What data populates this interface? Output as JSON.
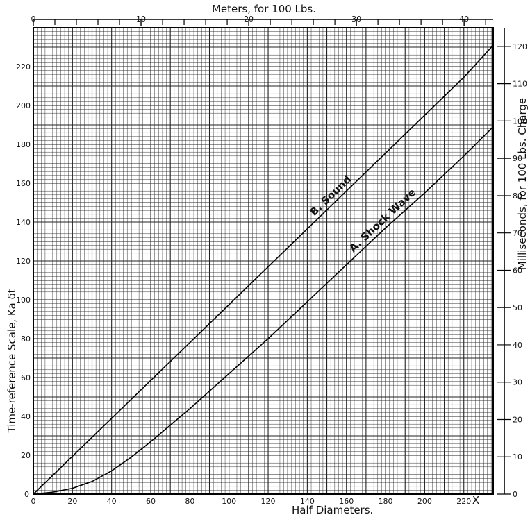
{
  "chart_data": {
    "type": "line",
    "xlabel": "Half Diameters.",
    "x_end_label": "X",
    "ylabel": "Time-reference Scale, Ka δt",
    "top_label": "Meters, for 100 Lbs.",
    "right_label": "Milliseconds, for 100 Lbs. Charge",
    "xlim": [
      0,
      235
    ],
    "ylim": [
      0,
      240
    ],
    "x_ticks": [
      20,
      40,
      60,
      80,
      100,
      120,
      140,
      160,
      180,
      200,
      220
    ],
    "y_ticks": [
      20,
      40,
      60,
      80,
      100,
      120,
      140,
      160,
      180,
      200,
      220
    ],
    "y_tick_labels": [
      "20",
      "40",
      "60",
      "80",
      "100",
      "120",
      "140",
      "160",
      "180",
      "200",
      "220"
    ],
    "y_zero_label": "0",
    "x_zero_label": "0",
    "top_axis": {
      "lim": [
        0,
        42.7
      ],
      "ticks": [
        0,
        10,
        20,
        30,
        40
      ],
      "tick_labels": [
        "0",
        "10",
        "20",
        "30",
        "40"
      ],
      "minor_ticks": [
        2,
        4,
        6,
        8,
        12,
        14,
        16,
        18,
        22,
        24,
        26,
        28,
        32,
        34,
        36,
        38,
        42
      ]
    },
    "right_axis": {
      "lim": [
        0,
        125
      ],
      "ticks": [
        0,
        10,
        20,
        30,
        40,
        50,
        60,
        70,
        80,
        90,
        100,
        110,
        120
      ],
      "tick_labels": [
        "0",
        "10",
        "20",
        "30",
        "40",
        "50",
        "60",
        "70",
        "80",
        "90",
        "100",
        "110",
        "120"
      ]
    },
    "grid": true,
    "series": [
      {
        "name": "B. Sound",
        "x": [
          0,
          20,
          40,
          60,
          80,
          100,
          120,
          140,
          160,
          180,
          200,
          220,
          235
        ],
        "y": [
          0,
          19.5,
          39,
          58.5,
          78,
          97.5,
          117,
          136.5,
          156,
          175.5,
          195,
          214.5,
          231
        ]
      },
      {
        "name": "A. Shock Wave",
        "x": [
          0,
          10,
          20,
          30,
          40,
          50,
          60,
          80,
          100,
          120,
          140,
          160,
          180,
          200,
          220,
          235
        ],
        "y": [
          0,
          1,
          3,
          6.5,
          12,
          19,
          27,
          44,
          62,
          80,
          99,
          118,
          137,
          155,
          174,
          189
        ]
      }
    ]
  }
}
